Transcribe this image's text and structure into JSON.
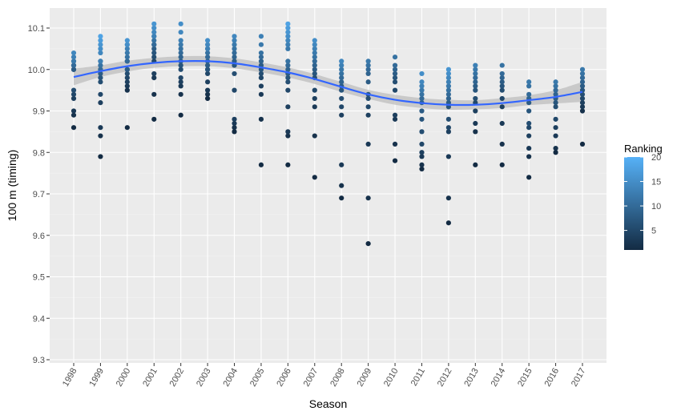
{
  "chart_data": {
    "type": "scatter",
    "title": "",
    "xlabel": "Season",
    "ylabel": "100 m (timing)",
    "ylim": [
      9.3,
      10.13
    ],
    "y_ticks": [
      "9.3",
      "9.4",
      "9.5",
      "9.6",
      "9.7",
      "9.8",
      "9.9",
      "10.0",
      "10.1"
    ],
    "categories": [
      "1998",
      "1999",
      "2000",
      "2001",
      "2002",
      "2003",
      "2004",
      "2005",
      "2006",
      "2007",
      "2008",
      "2009",
      "2010",
      "2011",
      "2012",
      "2013",
      "2014",
      "2015",
      "2016",
      "2017"
    ],
    "grid": true,
    "legend": {
      "title": "Ranking",
      "position": "right",
      "labels": [
        "20",
        "15",
        "10",
        "5"
      ],
      "range": [
        1,
        20
      ],
      "color_low": "#132b43",
      "color_high": "#56b1f7"
    },
    "points": [
      {
        "season": "1998",
        "times": [
          9.86,
          9.89,
          9.9,
          9.93,
          9.94,
          9.95,
          10.0,
          10.0,
          10.01,
          10.01,
          10.02,
          10.02,
          10.03,
          10.04
        ]
      },
      {
        "season": "1999",
        "times": [
          9.79,
          9.84,
          9.86,
          9.92,
          9.94,
          9.97,
          9.98,
          9.99,
          10.0,
          10.0,
          10.01,
          10.02,
          10.02,
          10.04,
          10.05,
          10.06,
          10.07,
          10.08
        ]
      },
      {
        "season": "2000",
        "times": [
          9.86,
          9.95,
          9.96,
          9.97,
          9.98,
          9.99,
          10.0,
          10.0,
          10.02,
          10.02,
          10.03,
          10.04,
          10.05,
          10.06,
          10.06,
          10.07
        ]
      },
      {
        "season": "2001",
        "times": [
          9.88,
          9.94,
          9.98,
          9.99,
          10.02,
          10.03,
          10.04,
          10.05,
          10.06,
          10.06,
          10.07,
          10.08,
          10.08,
          10.09,
          10.1,
          10.11
        ]
      },
      {
        "season": "2002",
        "times": [
          9.89,
          9.94,
          9.96,
          9.97,
          9.98,
          10.0,
          10.01,
          10.02,
          10.03,
          10.04,
          10.05,
          10.06,
          10.07,
          10.09,
          10.11
        ]
      },
      {
        "season": "2003",
        "times": [
          9.93,
          9.94,
          9.95,
          9.97,
          9.99,
          10.0,
          10.0,
          10.01,
          10.02,
          10.03,
          10.04,
          10.05,
          10.05,
          10.06,
          10.07
        ]
      },
      {
        "season": "2004",
        "times": [
          9.85,
          9.86,
          9.87,
          9.88,
          9.95,
          9.99,
          10.01,
          10.02,
          10.03,
          10.04,
          10.05,
          10.06,
          10.07,
          10.08
        ]
      },
      {
        "season": "2005",
        "times": [
          9.77,
          9.88,
          9.94,
          9.96,
          9.98,
          9.99,
          10.0,
          10.01,
          10.02,
          10.03,
          10.04,
          10.06,
          10.08
        ]
      },
      {
        "season": "2006",
        "times": [
          9.77,
          9.84,
          9.85,
          9.91,
          9.95,
          9.97,
          9.98,
          9.99,
          10.0,
          10.01,
          10.02,
          10.05,
          10.06,
          10.07,
          10.08,
          10.09,
          10.1,
          10.11
        ]
      },
      {
        "season": "2007",
        "times": [
          9.74,
          9.84,
          9.91,
          9.93,
          9.95,
          9.98,
          9.99,
          10.0,
          10.01,
          10.02,
          10.03,
          10.04,
          10.05,
          10.06,
          10.07
        ]
      },
      {
        "season": "2008",
        "times": [
          9.69,
          9.72,
          9.77,
          9.89,
          9.91,
          9.93,
          9.95,
          9.96,
          9.97,
          9.98,
          9.99,
          10.0,
          10.01,
          10.02
        ]
      },
      {
        "season": "2009",
        "times": [
          9.58,
          9.69,
          9.82,
          9.89,
          9.91,
          9.93,
          9.94,
          9.97,
          9.99,
          10.0,
          10.01,
          10.02
        ]
      },
      {
        "season": "2010",
        "times": [
          9.78,
          9.82,
          9.88,
          9.89,
          9.95,
          9.97,
          9.98,
          9.99,
          10.0,
          10.01,
          10.03
        ]
      },
      {
        "season": "2011",
        "times": [
          9.76,
          9.77,
          9.79,
          9.8,
          9.82,
          9.85,
          9.88,
          9.9,
          9.92,
          9.93,
          9.94,
          9.95,
          9.96,
          9.97,
          9.99
        ]
      },
      {
        "season": "2012",
        "times": [
          9.63,
          9.69,
          9.79,
          9.85,
          9.86,
          9.88,
          9.91,
          9.92,
          9.93,
          9.94,
          9.95,
          9.96,
          9.97,
          9.98,
          9.99,
          10.0
        ]
      },
      {
        "season": "2013",
        "times": [
          9.77,
          9.85,
          9.87,
          9.9,
          9.92,
          9.93,
          9.95,
          9.96,
          9.97,
          9.98,
          9.99,
          10.0,
          10.01
        ]
      },
      {
        "season": "2014",
        "times": [
          9.77,
          9.82,
          9.87,
          9.91,
          9.93,
          9.95,
          9.96,
          9.97,
          9.98,
          9.99,
          10.01
        ]
      },
      {
        "season": "2015",
        "times": [
          9.74,
          9.79,
          9.81,
          9.84,
          9.86,
          9.87,
          9.9,
          9.92,
          9.93,
          9.94,
          9.96,
          9.97
        ]
      },
      {
        "season": "2016",
        "times": [
          9.8,
          9.81,
          9.84,
          9.86,
          9.88,
          9.91,
          9.92,
          9.93,
          9.94,
          9.95,
          9.96,
          9.97
        ]
      },
      {
        "season": "2017",
        "times": [
          9.82,
          9.9,
          9.91,
          9.92,
          9.93,
          9.94,
          9.95,
          9.96,
          9.97,
          9.98,
          9.99,
          10.0
        ]
      }
    ],
    "smooth": {
      "x": [
        "1998",
        "1999",
        "2000",
        "2001",
        "2002",
        "2003",
        "2004",
        "2005",
        "2006",
        "2007",
        "2008",
        "2009",
        "2010",
        "2011",
        "2012",
        "2013",
        "2014",
        "2015",
        "2016",
        "2017"
      ],
      "y": [
        9.982,
        9.996,
        10.008,
        10.016,
        10.02,
        10.02,
        10.015,
        10.005,
        9.993,
        9.977,
        9.958,
        9.94,
        9.927,
        9.919,
        9.915,
        9.915,
        9.919,
        9.926,
        9.934,
        9.946
      ],
      "lower": [
        9.962,
        9.982,
        9.995,
        10.004,
        10.008,
        10.008,
        10.003,
        9.993,
        9.981,
        9.965,
        9.946,
        9.929,
        9.915,
        9.907,
        9.903,
        9.904,
        9.907,
        9.914,
        9.918,
        9.922
      ],
      "upper": [
        10.002,
        10.01,
        10.021,
        10.028,
        10.032,
        10.032,
        10.027,
        10.017,
        10.005,
        9.989,
        9.97,
        9.951,
        9.939,
        9.931,
        9.927,
        9.926,
        9.931,
        9.938,
        9.95,
        9.97
      ],
      "color": "#3366ff",
      "band_color": "#bdbdbd"
    },
    "colors": {
      "panel": "#ebebeb",
      "grid_major": "#ffffff",
      "grid_minor": "#f5f5f5"
    }
  }
}
